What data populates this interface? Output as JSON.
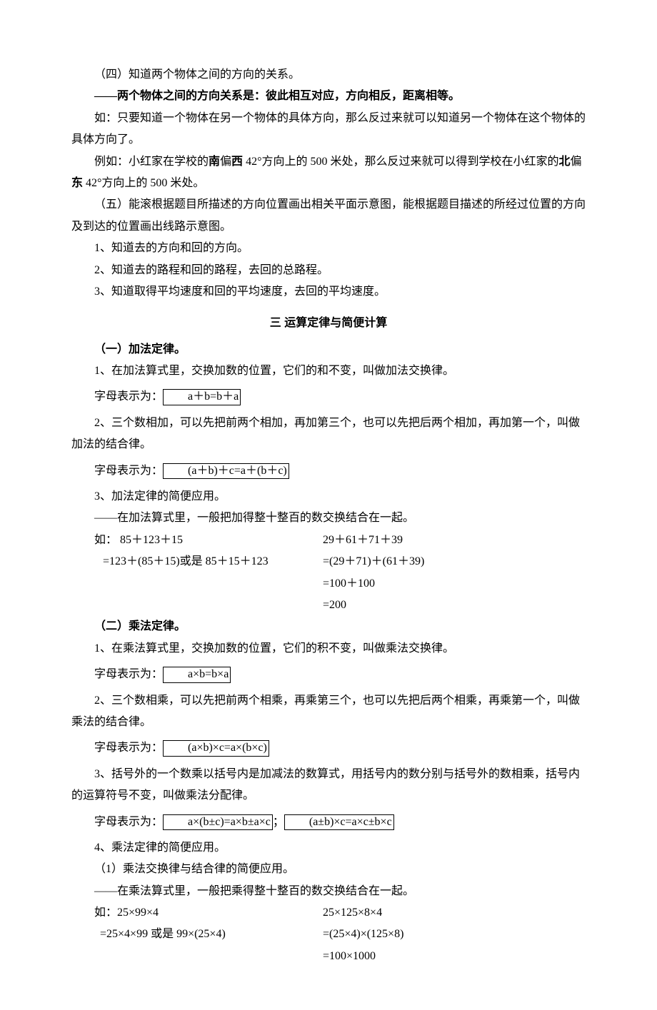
{
  "text_color": "#000000",
  "background_color": "#ffffff",
  "font_family": "SimSun",
  "font_size_pt": 12,
  "p1_4": "（四）知道两个物体之间的方向的关系。",
  "p1_4_rule": "——两个物体之间的方向关系是：彼此相互对应，方向相反，距离相等。",
  "p1_4_eg1": "如：只要知道一个物体在另一个物体的具体方向，那么反过来就可以知道另一个物体在这个物体的具体方向了。",
  "p1_4_eg2a": "例如：小红家在学校的",
  "p1_4_eg2b": "南",
  "p1_4_eg2c": "偏",
  "p1_4_eg2d": "西",
  "p1_4_eg2e": " 42°方向上的 500 米处，那么反过来就可以得到学校在小红家的",
  "p1_4_eg2f": "北",
  "p1_4_eg2g": "偏",
  "p1_4_eg2h": "东",
  "p1_4_eg2i": " 42°方向上的 500 米处。",
  "p1_5": "（五）能滚根据题目所描述的方向位置画出相关平面示意图，能根据题目描述的所经过位置的方向及到达的位置画出线路示意图。",
  "p1_5_1": "1、知道去的方向和回的方向。",
  "p1_5_2": "2、知道去的路程和回的路程，去回的总路程。",
  "p1_5_3": "3、知道取得平均速度和回的平均速度，去回的平均速度。",
  "section3_title": "三  运算定律与简便计算",
  "s3_1_title": "（一）加法定律。",
  "s3_1_1": "1、在加法算式里，交换加数的位置，它们的和不变，叫做加法交换律。",
  "s3_1_1_label": "字母表示为：",
  "s3_1_1_formula": "a＋b=b＋a",
  "s3_1_2": "2、三个数相加，可以先把前两个相加，再加第三个，也可以先把后两个相加，再加第一个，叫做加法的结合律。",
  "s3_1_2_label": "字母表示为：",
  "s3_1_2_formula": "(a＋b)＋c=a＋(b＋c)",
  "s3_1_3": "3、加法定律的简便应用。",
  "s3_1_3_rule": "——在加法算式里，一般把加得整十整百的数交换结合在一起。",
  "s3_1_3_eg_l1_l": "如：  85＋123＋15",
  "s3_1_3_eg_l1_r": "29＋61＋71＋39",
  "s3_1_3_eg_l2_l": "   =123＋(85＋15)或是 85＋15＋123",
  "s3_1_3_eg_l2_r": "=(29＋71)＋(61＋39)",
  "s3_1_3_eg_l3_r": "=100＋100",
  "s3_1_3_eg_l4_r": "=200",
  "s3_2_title": "（二）乘法定律。",
  "s3_2_1": "1、在乘法算式里，交换加数的位置，它们的积不变，叫做乘法交换律。",
  "s3_2_1_label": "字母表示为：",
  "s3_2_1_formula": "a×b=b×a ",
  "s3_2_2": "2、三个数相乘，可以先把前两个相乘，再乘第三个，也可以先把后两个相乘，再乘第一个，叫做乘法的结合律。",
  "s3_2_2_label": "字母表示为：",
  "s3_2_2_formula": "(a×b)×c=a×(b×c)",
  "s3_2_3": "3、括号外的一个数乘以括号内是加减法的数算式，用括号内的数分别与括号外的数相乘，括号内的运算符号不变，叫做乘法分配律。",
  "s3_2_3_label": "字母表示为：",
  "s3_2_3_formula1": "a×(b±c)=a×b±a×c",
  "s3_2_3_sep": "；",
  "s3_2_3_formula2": "(a±b)×c=a×c±b×c",
  "s3_2_4": "4、乘法定律的简便应用。",
  "s3_2_4_1": "（1）乘法交换律与结合律的简便应用。",
  "s3_2_4_rule": "——在乘法算式里，一般把乘得整十整百的数交换结合在一起。",
  "s3_2_4_eg_l1_l": "如：25×99×4",
  "s3_2_4_eg_l1_r": "25×125×8×4",
  "s3_2_4_eg_l2_l": "  =25×4×99 或是 99×(25×4)",
  "s3_2_4_eg_l2_r": "=(25×4)×(125×8)",
  "s3_2_4_eg_l3_r": "=100×1000"
}
